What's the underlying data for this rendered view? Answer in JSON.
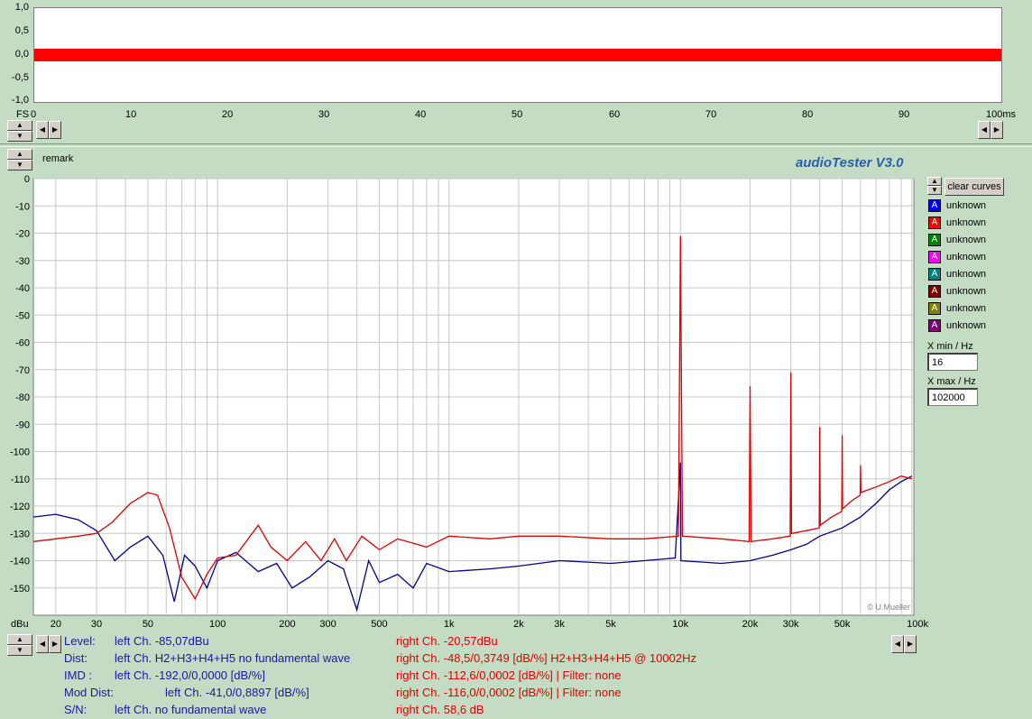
{
  "scope": {
    "y_ticks": [
      "1,0",
      "0,5",
      "0,0",
      "-0,5",
      "-1,0"
    ],
    "x_ticks": [
      "0",
      "10",
      "20",
      "30",
      "40",
      "50",
      "60",
      "70",
      "80",
      "90",
      "100ms"
    ],
    "x_start_label": "FS"
  },
  "remark_label": "remark",
  "app_title": "audioTester  V3.0",
  "copyright": "© U.Mueller",
  "clear_curves_label": "clear curves",
  "legend": [
    {
      "label": "unknown",
      "color": "#0000ff"
    },
    {
      "label": "unknown",
      "color": "#ff0000"
    },
    {
      "label": "unknown",
      "color": "#008000"
    },
    {
      "label": "unknown",
      "color": "#ff00ff"
    },
    {
      "label": "unknown",
      "color": "#008080"
    },
    {
      "label": "unknown",
      "color": "#800000"
    },
    {
      "label": "unknown",
      "color": "#808000"
    },
    {
      "label": "unknown",
      "color": "#800080"
    }
  ],
  "legend_glyph": "A",
  "xmin": {
    "label": "X min / Hz",
    "value": "16"
  },
  "xmax": {
    "label": "X max / Hz",
    "value": "102000"
  },
  "status": {
    "level_label": "Level:",
    "level_left": "left Ch. -85,07dBu",
    "level_right": "right Ch. -20,57dBu",
    "dist_label": "Dist:",
    "dist_left": "left Ch. H2+H3+H4+H5 no fundamental wave",
    "dist_right": "right Ch. -48,5/0,3749 [dB/%] H2+H3+H4+H5 @ 10002Hz",
    "imd_label": "IMD   :",
    "imd_left": "left Ch. -192,0/0,0000 [dB/%]",
    "imd_right": "right Ch. -112,6/0,0002 [dB/%] |   Filter: none",
    "mod_label": "Mod Dist:",
    "mod_left": "left Ch. -41,0/0,8897 [dB/%]",
    "mod_right": "right Ch. -116,0/0,0002 [dB/%] |   Filter: none",
    "sn_label": "S/N:",
    "sn_left": "left Ch.  no fundamental wave",
    "sn_right": "right Ch. 58,6 dB"
  },
  "chart_data": {
    "type": "line",
    "x_scale": "log",
    "xlim": [
      16,
      102000
    ],
    "ylim": [
      -160,
      0
    ],
    "ylabel": "dBu",
    "y_ticks": [
      "0",
      "-10",
      "-20",
      "-30",
      "-40",
      "-50",
      "-60",
      "-70",
      "-80",
      "-90",
      "-100",
      "-110",
      "-120",
      "-130",
      "-140",
      "-150"
    ],
    "x_tick_labels": [
      {
        "v": 20,
        "t": "20"
      },
      {
        "v": 30,
        "t": "30"
      },
      {
        "v": 50,
        "t": "50"
      },
      {
        "v": 100,
        "t": "100"
      },
      {
        "v": 200,
        "t": "200"
      },
      {
        "v": 300,
        "t": "300"
      },
      {
        "v": 500,
        "t": "500"
      },
      {
        "v": 1000,
        "t": "1k"
      },
      {
        "v": 2000,
        "t": "2k"
      },
      {
        "v": 3000,
        "t": "3k"
      },
      {
        "v": 5000,
        "t": "5k"
      },
      {
        "v": 10000,
        "t": "10k"
      },
      {
        "v": 20000,
        "t": "20k"
      },
      {
        "v": 30000,
        "t": "30k"
      },
      {
        "v": 50000,
        "t": "50k"
      },
      {
        "v": 100000,
        "t": "100kHz"
      }
    ],
    "grid": true,
    "series": [
      {
        "color": "#00008b",
        "points": [
          [
            16,
            -124
          ],
          [
            20,
            -123
          ],
          [
            25,
            -125
          ],
          [
            30,
            -129
          ],
          [
            36,
            -140
          ],
          [
            42,
            -135
          ],
          [
            50,
            -131
          ],
          [
            58,
            -138
          ],
          [
            65,
            -155
          ],
          [
            72,
            -138
          ],
          [
            80,
            -142
          ],
          [
            90,
            -150
          ],
          [
            100,
            -140
          ],
          [
            120,
            -137
          ],
          [
            150,
            -144
          ],
          [
            180,
            -141
          ],
          [
            210,
            -150
          ],
          [
            250,
            -146
          ],
          [
            300,
            -140
          ],
          [
            350,
            -143
          ],
          [
            400,
            -158
          ],
          [
            450,
            -140
          ],
          [
            500,
            -148
          ],
          [
            600,
            -145
          ],
          [
            700,
            -150
          ],
          [
            800,
            -141
          ],
          [
            1000,
            -144
          ],
          [
            1500,
            -143
          ],
          [
            2000,
            -142
          ],
          [
            3000,
            -140
          ],
          [
            5000,
            -141
          ],
          [
            7000,
            -140
          ],
          [
            9500,
            -139
          ],
          [
            10000,
            -104
          ],
          [
            10050,
            -140
          ],
          [
            15000,
            -141
          ],
          [
            20000,
            -140
          ],
          [
            25000,
            -138
          ],
          [
            30000,
            -136
          ],
          [
            35000,
            -134
          ],
          [
            40000,
            -131
          ],
          [
            50000,
            -128
          ],
          [
            60000,
            -124
          ],
          [
            70000,
            -119
          ],
          [
            80000,
            -114
          ],
          [
            90000,
            -111
          ],
          [
            100000,
            -109
          ]
        ]
      },
      {
        "color": "#e00000",
        "points": [
          [
            16,
            -133
          ],
          [
            20,
            -132
          ],
          [
            25,
            -131
          ],
          [
            30,
            -130
          ],
          [
            35,
            -126
          ],
          [
            42,
            -119
          ],
          [
            50,
            -115
          ],
          [
            55,
            -116
          ],
          [
            62,
            -128
          ],
          [
            70,
            -146
          ],
          [
            80,
            -154
          ],
          [
            90,
            -145
          ],
          [
            100,
            -139
          ],
          [
            120,
            -138
          ],
          [
            150,
            -127
          ],
          [
            170,
            -135
          ],
          [
            200,
            -140
          ],
          [
            240,
            -133
          ],
          [
            280,
            -140
          ],
          [
            320,
            -132
          ],
          [
            360,
            -140
          ],
          [
            420,
            -131
          ],
          [
            500,
            -136
          ],
          [
            600,
            -132
          ],
          [
            800,
            -135
          ],
          [
            1000,
            -131
          ],
          [
            1500,
            -132
          ],
          [
            2000,
            -131
          ],
          [
            3000,
            -131
          ],
          [
            5000,
            -132
          ],
          [
            7000,
            -132
          ],
          [
            9800,
            -131
          ],
          [
            10000,
            -21
          ],
          [
            10200,
            -131
          ],
          [
            15000,
            -132
          ],
          [
            19800,
            -133
          ],
          [
            20000,
            -76
          ],
          [
            20200,
            -133
          ],
          [
            25000,
            -132
          ],
          [
            29800,
            -131
          ],
          [
            30000,
            -71
          ],
          [
            30200,
            -130
          ],
          [
            35000,
            -129
          ],
          [
            39800,
            -128
          ],
          [
            40000,
            -91
          ],
          [
            40200,
            -127
          ],
          [
            45000,
            -124
          ],
          [
            49800,
            -122
          ],
          [
            50000,
            -94
          ],
          [
            50200,
            -121
          ],
          [
            55000,
            -118
          ],
          [
            59800,
            -116
          ],
          [
            60000,
            -105
          ],
          [
            60200,
            -115
          ],
          [
            70000,
            -113
          ],
          [
            80000,
            -111
          ],
          [
            90000,
            -109
          ],
          [
            100000,
            -110
          ]
        ]
      }
    ]
  }
}
